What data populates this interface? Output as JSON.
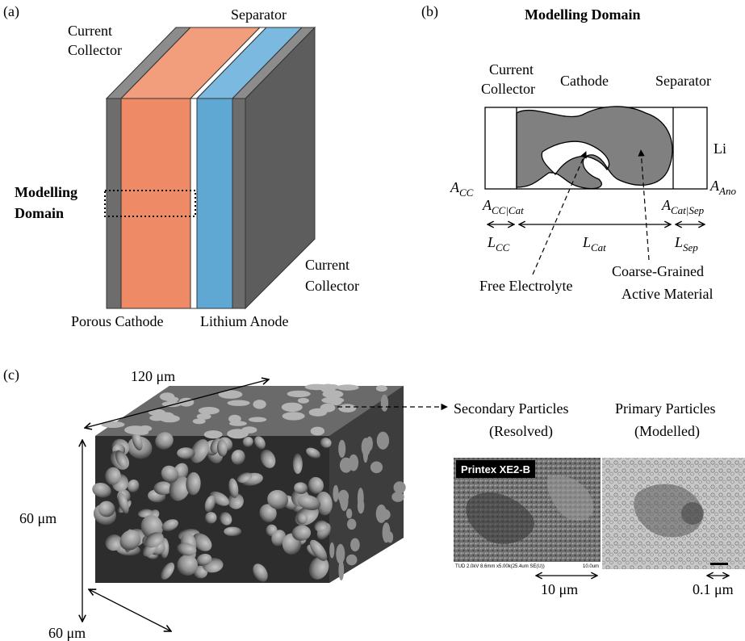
{
  "panel_a": {
    "label": "(a)",
    "current_collector_top": [
      "Current",
      "Collector"
    ],
    "separator": "Separator",
    "modelling_domain": [
      "Modelling",
      "Domain"
    ],
    "current_collector_right": [
      "Current",
      "Collector"
    ],
    "porous_cathode": "Porous Cathode",
    "lithium_anode": "Lithium Anode",
    "colors": {
      "collector": "#6d6d6d",
      "cathode": "#ef8a66",
      "anode": "#5fa8d3",
      "separator": "#ffffff"
    }
  },
  "panel_b": {
    "label": "(b)",
    "title": "Modelling Domain",
    "current_collector": [
      "Current",
      "Collector"
    ],
    "cathode": "Cathode",
    "separator": "Separator",
    "li": "Li",
    "a_cc": {
      "base": "A",
      "sub": "CC"
    },
    "a_cc_cat": {
      "base": "A",
      "sub": "CC|Cat"
    },
    "a_cat_sep": {
      "base": "A",
      "sub": "Cat|Sep"
    },
    "a_ano": {
      "base": "A",
      "sub": "Ano"
    },
    "l_cc": {
      "base": "L",
      "sub": "CC"
    },
    "l_cat": {
      "base": "L",
      "sub": "Cat"
    },
    "l_sep": {
      "base": "L",
      "sub": "Sep"
    },
    "free_electrolyte": "Free Electrolyte",
    "coarse_grained": [
      "Coarse-Grained",
      "Active Material"
    ]
  },
  "panel_c": {
    "label": "(c)",
    "dim_x": "120 μm",
    "dim_y": "60 μm",
    "dim_z": "60 μm",
    "secondary": [
      "Secondary Particles",
      "(Resolved)"
    ],
    "primary": [
      "Primary Particles",
      "(Modelled)"
    ],
    "sem_label": "Printex XE2-B",
    "sem_footer": "TUD 2.0kV 8.6mm x5.00k(25.4um SE(U))",
    "sem_scale_text": "10.0um",
    "scale_10": "10 μm",
    "scale_01": "0.1 μm"
  }
}
